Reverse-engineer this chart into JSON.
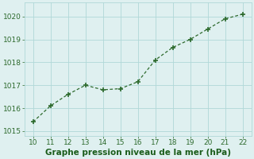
{
  "x": [
    10,
    11,
    12,
    13,
    14,
    15,
    16,
    17,
    18,
    19,
    20,
    21,
    22
  ],
  "y": [
    1015.4,
    1016.1,
    1016.6,
    1017.0,
    1016.8,
    1016.85,
    1017.15,
    1018.1,
    1018.65,
    1019.0,
    1019.45,
    1019.9,
    1020.1
  ],
  "line_color": "#2d6a2d",
  "marker": "+",
  "marker_size": 4,
  "marker_lw": 1.2,
  "linewidth": 0.9,
  "bg_color": "#dff0f0",
  "grid_color": "#b0d8d8",
  "xlabel": "Graphe pression niveau de la mer (hPa)",
  "xlabel_color": "#1a5c1a",
  "xlabel_fontsize": 7.5,
  "xlim": [
    9.5,
    22.5
  ],
  "ylim": [
    1014.8,
    1020.6
  ],
  "xticks": [
    10,
    11,
    12,
    13,
    14,
    15,
    16,
    17,
    18,
    19,
    20,
    21,
    22
  ],
  "yticks": [
    1015,
    1016,
    1017,
    1018,
    1019,
    1020
  ],
  "tick_fontsize": 6.5,
  "tick_color": "#2d6a2d"
}
